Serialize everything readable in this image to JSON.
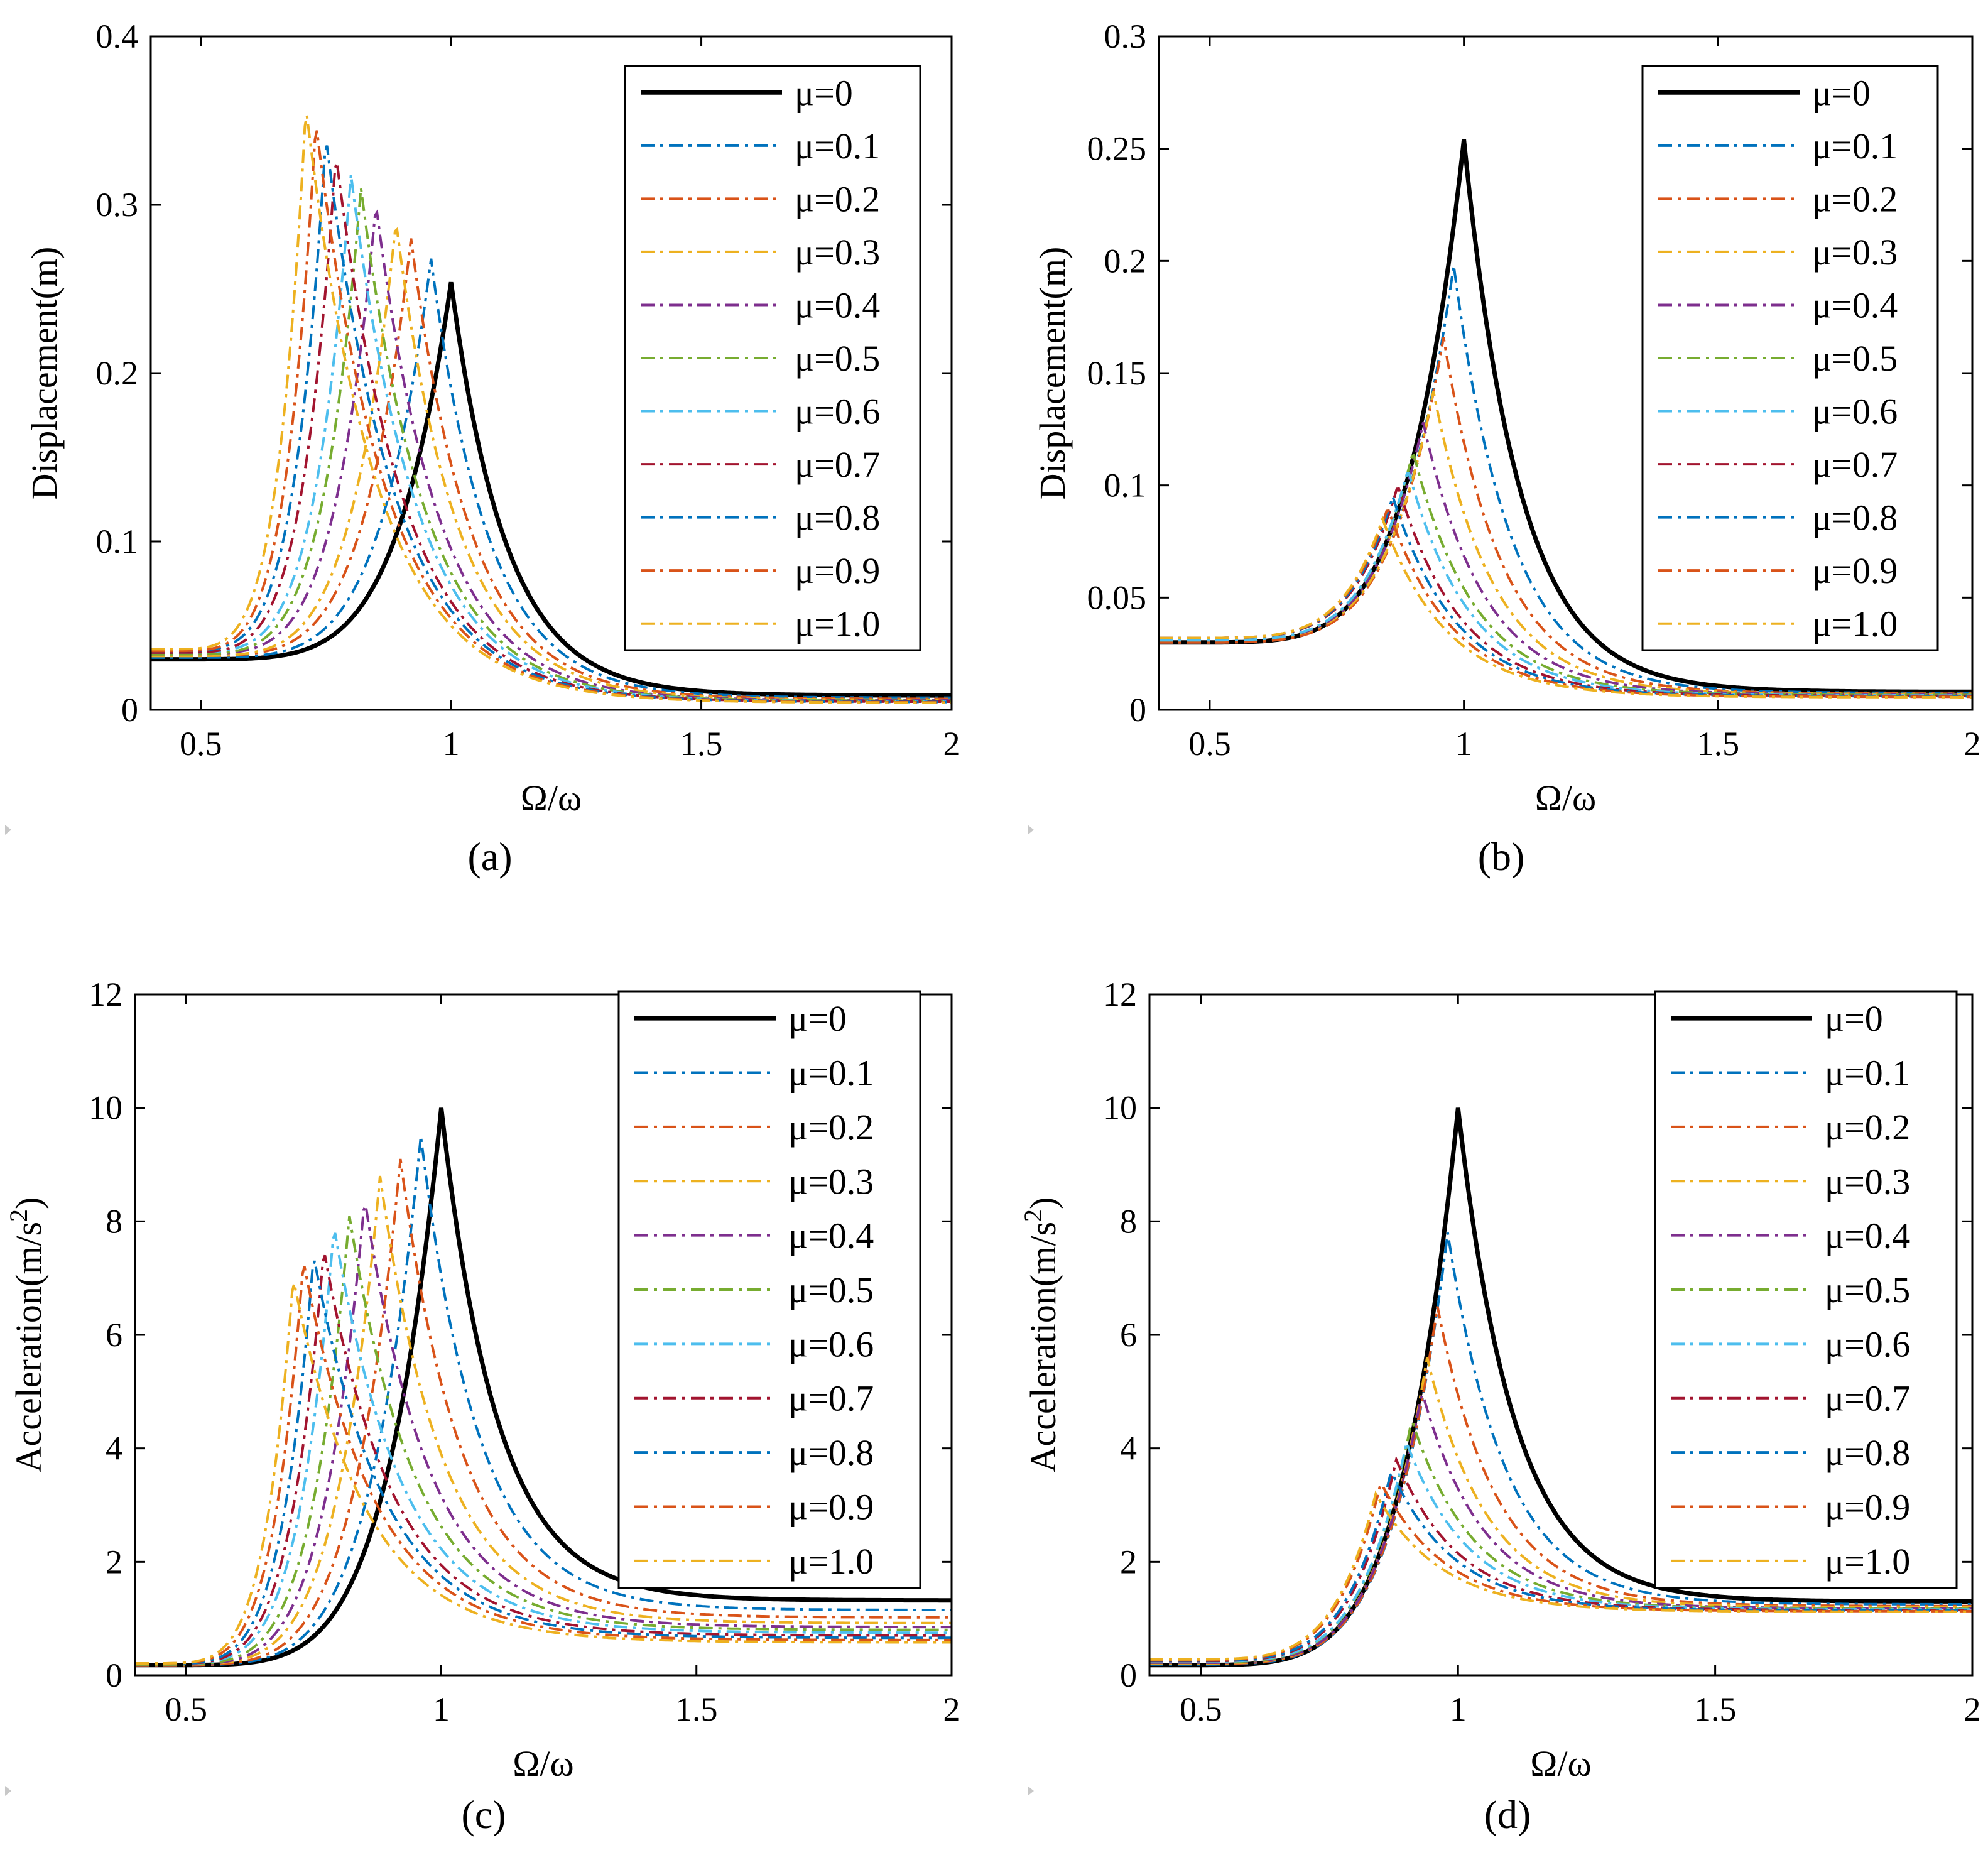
{
  "legend_labels": [
    "μ=0",
    "μ=0.1",
    "μ=0.2",
    "μ=0.3",
    "μ=0.4",
    "μ=0.5",
    "μ=0.6",
    "μ=0.7",
    "μ=0.8",
    "μ=0.9",
    "μ=1.0"
  ],
  "series_colors": [
    "#000000",
    "#0072BD",
    "#D95319",
    "#EDB120",
    "#7E2F8E",
    "#77AC30",
    "#4DBEEE",
    "#A2142F",
    "#0072BD",
    "#D95319",
    "#EDB120"
  ],
  "chart_data": [
    {
      "type": "line",
      "panel": "a",
      "caption": "(a)",
      "xlabel": "Ω/ω",
      "ylabel": "Displacement(m)",
      "xlim": [
        0.4,
        2
      ],
      "ylim": [
        0,
        0.4
      ],
      "xticks": [
        0.5,
        1,
        1.5,
        2
      ],
      "xtick_labels": [
        "0.5",
        "1",
        "1.5",
        "2"
      ],
      "yticks": [
        0,
        0.1,
        0.2,
        0.3,
        0.4
      ],
      "ytick_labels": [
        "0",
        "0.1",
        "0.2",
        "0.3",
        "0.4"
      ],
      "legend_position": "top-right",
      "series": [
        {
          "name": "μ=0",
          "peak_x": 1.0,
          "peak_y": 0.254,
          "base_start": 0.03,
          "tail_end": 0.0085
        },
        {
          "name": "μ=0.1",
          "peak_x": 0.96,
          "peak_y": 0.268,
          "base_start": 0.031,
          "tail_end": 0.0072
        },
        {
          "name": "μ=0.2",
          "peak_x": 0.92,
          "peak_y": 0.28,
          "base_start": 0.032,
          "tail_end": 0.0065
        },
        {
          "name": "μ=0.3",
          "peak_x": 0.89,
          "peak_y": 0.29,
          "base_start": 0.032,
          "tail_end": 0.006
        },
        {
          "name": "μ=0.4",
          "peak_x": 0.85,
          "peak_y": 0.3,
          "base_start": 0.033,
          "tail_end": 0.0056
        },
        {
          "name": "μ=0.5",
          "peak_x": 0.82,
          "peak_y": 0.31,
          "base_start": 0.033,
          "tail_end": 0.0053
        },
        {
          "name": "μ=0.6",
          "peak_x": 0.8,
          "peak_y": 0.318,
          "base_start": 0.034,
          "tail_end": 0.005
        },
        {
          "name": "μ=0.7",
          "peak_x": 0.77,
          "peak_y": 0.33,
          "base_start": 0.034,
          "tail_end": 0.0048
        },
        {
          "name": "μ=0.8",
          "peak_x": 0.75,
          "peak_y": 0.34,
          "base_start": 0.035,
          "tail_end": 0.0046
        },
        {
          "name": "μ=0.9",
          "peak_x": 0.73,
          "peak_y": 0.349,
          "base_start": 0.035,
          "tail_end": 0.0044
        },
        {
          "name": "μ=1.0",
          "peak_x": 0.71,
          "peak_y": 0.358,
          "base_start": 0.036,
          "tail_end": 0.0042
        }
      ]
    },
    {
      "type": "line",
      "panel": "b",
      "caption": "(b)",
      "xlabel": "Ω/ω",
      "ylabel": "Displacement(m)",
      "xlim": [
        0.4,
        2
      ],
      "ylim": [
        0,
        0.3
      ],
      "xticks": [
        0.5,
        1,
        1.5,
        2
      ],
      "xtick_labels": [
        "0.5",
        "1",
        "1.5",
        "2"
      ],
      "yticks": [
        0,
        0.05,
        0.1,
        0.15,
        0.2,
        0.25,
        0.3
      ],
      "ytick_labels": [
        "0",
        "0.05",
        "0.1",
        "0.15",
        "0.2",
        "0.25",
        "0.3"
      ],
      "legend_position": "top-right",
      "series": [
        {
          "name": "μ=0",
          "peak_x": 1.0,
          "peak_y": 0.254,
          "base_start": 0.03,
          "tail_end": 0.008
        },
        {
          "name": "μ=0.1",
          "peak_x": 0.98,
          "peak_y": 0.198,
          "base_start": 0.03,
          "tail_end": 0.0075
        },
        {
          "name": "μ=0.2",
          "peak_x": 0.96,
          "peak_y": 0.166,
          "base_start": 0.03,
          "tail_end": 0.0072
        },
        {
          "name": "μ=0.3",
          "peak_x": 0.94,
          "peak_y": 0.142,
          "base_start": 0.031,
          "tail_end": 0.007
        },
        {
          "name": "μ=0.4",
          "peak_x": 0.92,
          "peak_y": 0.128,
          "base_start": 0.031,
          "tail_end": 0.0068
        },
        {
          "name": "μ=0.5",
          "peak_x": 0.9,
          "peak_y": 0.115,
          "base_start": 0.031,
          "tail_end": 0.0066
        },
        {
          "name": "μ=0.6",
          "peak_x": 0.89,
          "peak_y": 0.107,
          "base_start": 0.031,
          "tail_end": 0.0064
        },
        {
          "name": "μ=0.7",
          "peak_x": 0.87,
          "peak_y": 0.1,
          "base_start": 0.032,
          "tail_end": 0.0062
        },
        {
          "name": "μ=0.8",
          "peak_x": 0.86,
          "peak_y": 0.095,
          "base_start": 0.032,
          "tail_end": 0.006
        },
        {
          "name": "μ=0.9",
          "peak_x": 0.85,
          "peak_y": 0.09,
          "base_start": 0.032,
          "tail_end": 0.0058
        },
        {
          "name": "μ=1.0",
          "peak_x": 0.84,
          "peak_y": 0.085,
          "base_start": 0.032,
          "tail_end": 0.0056
        }
      ]
    },
    {
      "type": "line",
      "panel": "c",
      "caption": "(c)",
      "xlabel": "Ω/ω",
      "ylabel": "Acceleration(m/s²)",
      "ylabel_main": "Acceleration(m/s",
      "ylabel_sup": "2",
      "ylabel_end": ")",
      "xlim": [
        0.4,
        2
      ],
      "ylim": [
        0,
        12
      ],
      "xticks": [
        0.5,
        1,
        1.5,
        2
      ],
      "xtick_labels": [
        "0.5",
        "1",
        "1.5",
        "2"
      ],
      "yticks": [
        0,
        2,
        4,
        6,
        8,
        10,
        12
      ],
      "ytick_labels": [
        "0",
        "2",
        "4",
        "6",
        "8",
        "10",
        "12"
      ],
      "legend_position": "top-right",
      "series": [
        {
          "name": "μ=0",
          "peak_x": 1.0,
          "peak_y": 10.0,
          "base_start": 0.18,
          "tail_end": 1.32
        },
        {
          "name": "μ=0.1",
          "peak_x": 0.96,
          "peak_y": 9.5,
          "base_start": 0.18,
          "tail_end": 1.15
        },
        {
          "name": "μ=0.2",
          "peak_x": 0.92,
          "peak_y": 9.1,
          "base_start": 0.18,
          "tail_end": 1.02
        },
        {
          "name": "μ=0.3",
          "peak_x": 0.88,
          "peak_y": 8.8,
          "base_start": 0.19,
          "tail_end": 0.92
        },
        {
          "name": "μ=0.4",
          "peak_x": 0.85,
          "peak_y": 8.4,
          "base_start": 0.19,
          "tail_end": 0.85
        },
        {
          "name": "μ=0.5",
          "peak_x": 0.82,
          "peak_y": 8.1,
          "base_start": 0.19,
          "tail_end": 0.8
        },
        {
          "name": "μ=0.6",
          "peak_x": 0.79,
          "peak_y": 7.9,
          "base_start": 0.2,
          "tail_end": 0.75
        },
        {
          "name": "μ=0.7",
          "peak_x": 0.77,
          "peak_y": 7.5,
          "base_start": 0.2,
          "tail_end": 0.7
        },
        {
          "name": "μ=0.8",
          "peak_x": 0.75,
          "peak_y": 7.4,
          "base_start": 0.2,
          "tail_end": 0.66
        },
        {
          "name": "μ=0.9",
          "peak_x": 0.73,
          "peak_y": 7.3,
          "base_start": 0.21,
          "tail_end": 0.62
        },
        {
          "name": "μ=1.0",
          "peak_x": 0.71,
          "peak_y": 7.0,
          "base_start": 0.21,
          "tail_end": 0.58
        }
      ]
    },
    {
      "type": "line",
      "panel": "d",
      "caption": "(d)",
      "xlabel": "Ω/ω",
      "ylabel": "Acceleration(m/s²)",
      "ylabel_main": "Acceleration(m/s",
      "ylabel_sup": "2",
      "ylabel_end": ")",
      "xlim": [
        0.4,
        2
      ],
      "ylim": [
        0,
        12
      ],
      "xticks": [
        0.5,
        1,
        1.5,
        2
      ],
      "xtick_labels": [
        "0.5",
        "1",
        "1.5",
        "2"
      ],
      "yticks": [
        0,
        2,
        4,
        6,
        8,
        10,
        12
      ],
      "ytick_labels": [
        "0",
        "2",
        "4",
        "6",
        "8",
        "10",
        "12"
      ],
      "legend_position": "top-right",
      "series": [
        {
          "name": "μ=0",
          "peak_x": 1.0,
          "peak_y": 10.0,
          "base_start": 0.18,
          "tail_end": 1.3
        },
        {
          "name": "μ=0.1",
          "peak_x": 0.98,
          "peak_y": 7.8,
          "base_start": 0.19,
          "tail_end": 1.25
        },
        {
          "name": "μ=0.2",
          "peak_x": 0.96,
          "peak_y": 6.5,
          "base_start": 0.2,
          "tail_end": 1.22
        },
        {
          "name": "μ=0.3",
          "peak_x": 0.94,
          "peak_y": 5.6,
          "base_start": 0.21,
          "tail_end": 1.2
        },
        {
          "name": "μ=0.4",
          "peak_x": 0.93,
          "peak_y": 5.0,
          "base_start": 0.22,
          "tail_end": 1.18
        },
        {
          "name": "μ=0.5",
          "peak_x": 0.91,
          "peak_y": 4.5,
          "base_start": 0.23,
          "tail_end": 1.17
        },
        {
          "name": "μ=0.6",
          "peak_x": 0.9,
          "peak_y": 4.1,
          "base_start": 0.24,
          "tail_end": 1.16
        },
        {
          "name": "μ=0.7",
          "peak_x": 0.88,
          "peak_y": 3.8,
          "base_start": 0.25,
          "tail_end": 1.15
        },
        {
          "name": "μ=0.8",
          "peak_x": 0.87,
          "peak_y": 3.6,
          "base_start": 0.26,
          "tail_end": 1.14
        },
        {
          "name": "μ=0.9",
          "peak_x": 0.85,
          "peak_y": 3.4,
          "base_start": 0.27,
          "tail_end": 1.13
        },
        {
          "name": "μ=1.0",
          "peak_x": 0.84,
          "peak_y": 3.2,
          "base_start": 0.28,
          "tail_end": 1.12
        }
      ]
    }
  ]
}
